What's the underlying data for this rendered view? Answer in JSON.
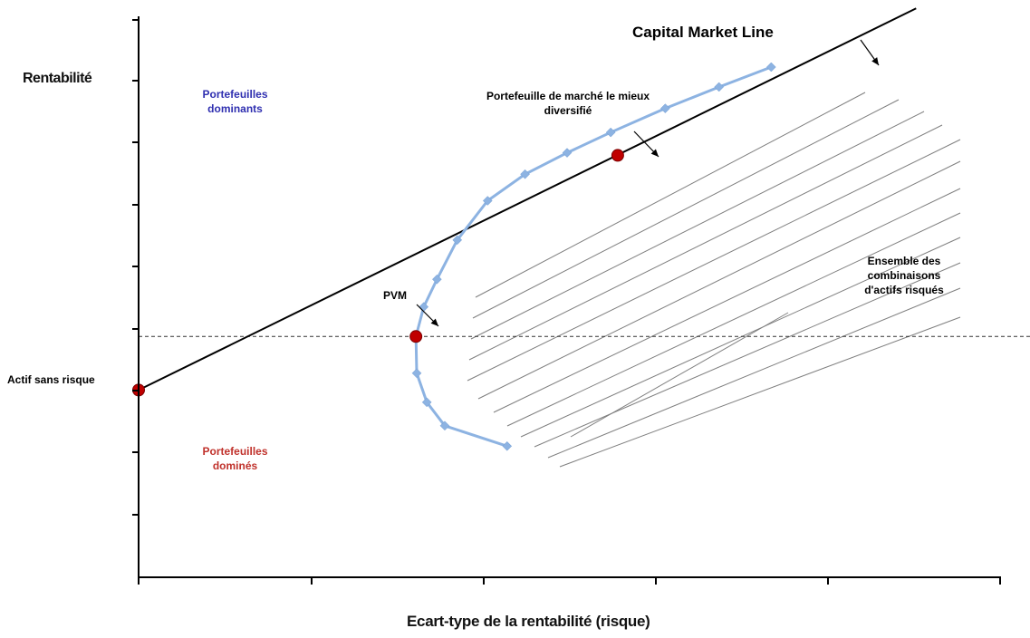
{
  "chart_data": {
    "type": "line",
    "title": "",
    "xlabel": "Ecart-type de la rentabilité (risque)",
    "ylabel": "Rentabilité",
    "xlim": [
      0,
      1
    ],
    "ylim": [
      0,
      1
    ],
    "grid": false,
    "legend": "none",
    "series": [
      {
        "values": [
          [
            0.473,
            0.257
          ],
          [
            0.393,
            0.297
          ],
          [
            0.37,
            0.343
          ],
          [
            0.357,
            0.4
          ],
          [
            0.356,
            0.472
          ],
          [
            0.366,
            0.53
          ],
          [
            0.383,
            0.584
          ],
          [
            0.409,
            0.661
          ],
          [
            0.448,
            0.738
          ],
          [
            0.496,
            0.79
          ],
          [
            0.55,
            0.832
          ],
          [
            0.606,
            0.872
          ],
          [
            0.676,
            0.919
          ],
          [
            0.745,
            0.961
          ],
          [
            0.812,
            1.0
          ]
        ]
      }
    ],
    "capital_market_line": {
      "label": "Capital Market Line",
      "x": [
        0,
        0.998
      ],
      "y": [
        0.367,
        1.115
      ]
    },
    "reference_line": {
      "y": 0.472,
      "style": "dashed"
    },
    "key_points": [
      {
        "label": "Actif sans risque",
        "x": 0,
        "y": 0.367
      },
      {
        "label": "PVM",
        "x": 0.356,
        "y": 0.472
      },
      {
        "label": "Portefeuille de marché le mieux diversifié",
        "x": 0.615,
        "y": 0.827
      }
    ],
    "annotations": {
      "dominant": "Portefeuilles dominants",
      "dominated": "Portefeuilles dominés",
      "risky_set": "Ensemble des combinaisons d'actifs risqués",
      "pvm": "PVM",
      "market_portfolio": "Portefeuille de marché le mieux diversifié",
      "risk_free": "Actif sans risque",
      "cml": "Capital Market Line"
    },
    "colors": {
      "frontier": "#8db3e2",
      "point": "#c00000",
      "line": "#000000",
      "hatch": "#7f7f7f",
      "dominant_text": "#2f2fb0",
      "dominated_text": "#c0312b"
    }
  }
}
